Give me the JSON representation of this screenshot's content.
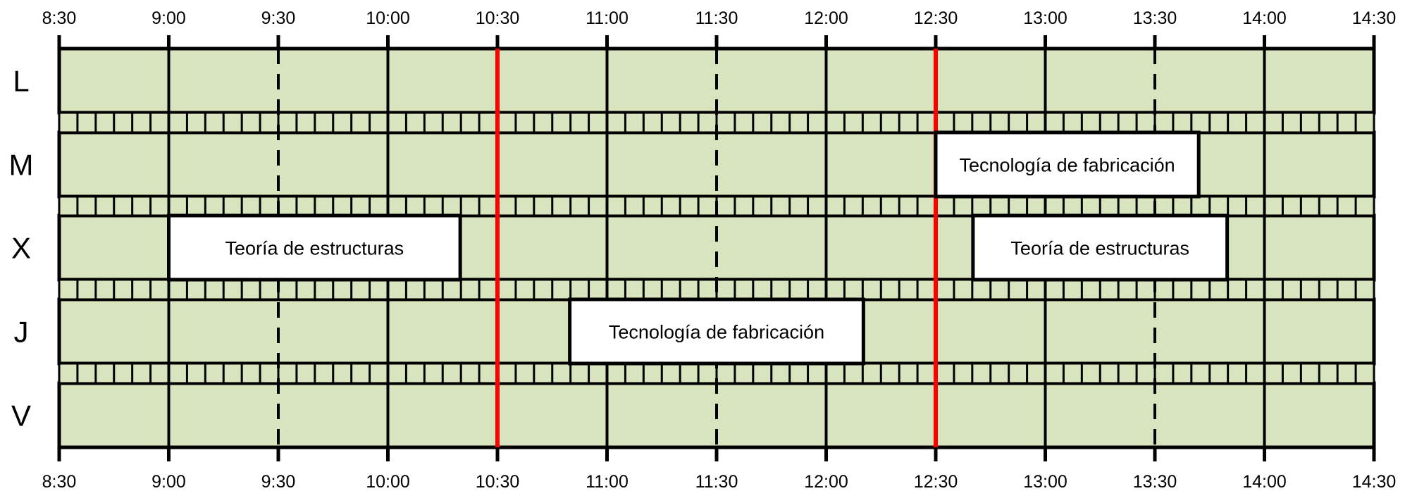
{
  "schedule": {
    "time_labels": [
      "8:30",
      "9:00",
      "9:30",
      "10:00",
      "10:30",
      "11:00",
      "11:30",
      "12:00",
      "12:30",
      "13:00",
      "13:30",
      "14:00",
      "14:30"
    ],
    "days": [
      "L",
      "M",
      "X",
      "J",
      "V"
    ],
    "start_hour": 8.5,
    "end_hour": 14.5,
    "full_hour_lines": [
      9,
      10,
      11,
      12,
      13,
      14
    ],
    "half_hour_lines": [
      9.5,
      11.5,
      13.5
    ],
    "highlight_lines": [
      10.5,
      12.5
    ],
    "events": [
      {
        "day_index": 1,
        "start": 12.5,
        "end": 13.7,
        "label": "Tecnología de fabricación"
      },
      {
        "day_index": 2,
        "start": 9.0,
        "end": 10.33,
        "label": "Teoría de estructuras"
      },
      {
        "day_index": 2,
        "start": 12.67,
        "end": 13.83,
        "label": "Teoría de estructuras"
      },
      {
        "day_index": 3,
        "start": 10.83,
        "end": 12.17,
        "label": "Tecnología de fabricación"
      }
    ],
    "colors": {
      "grid_fill": "#d7e4bd",
      "line": "#000000",
      "highlight": "#ff0000",
      "event_fill": "#ffffff"
    }
  }
}
